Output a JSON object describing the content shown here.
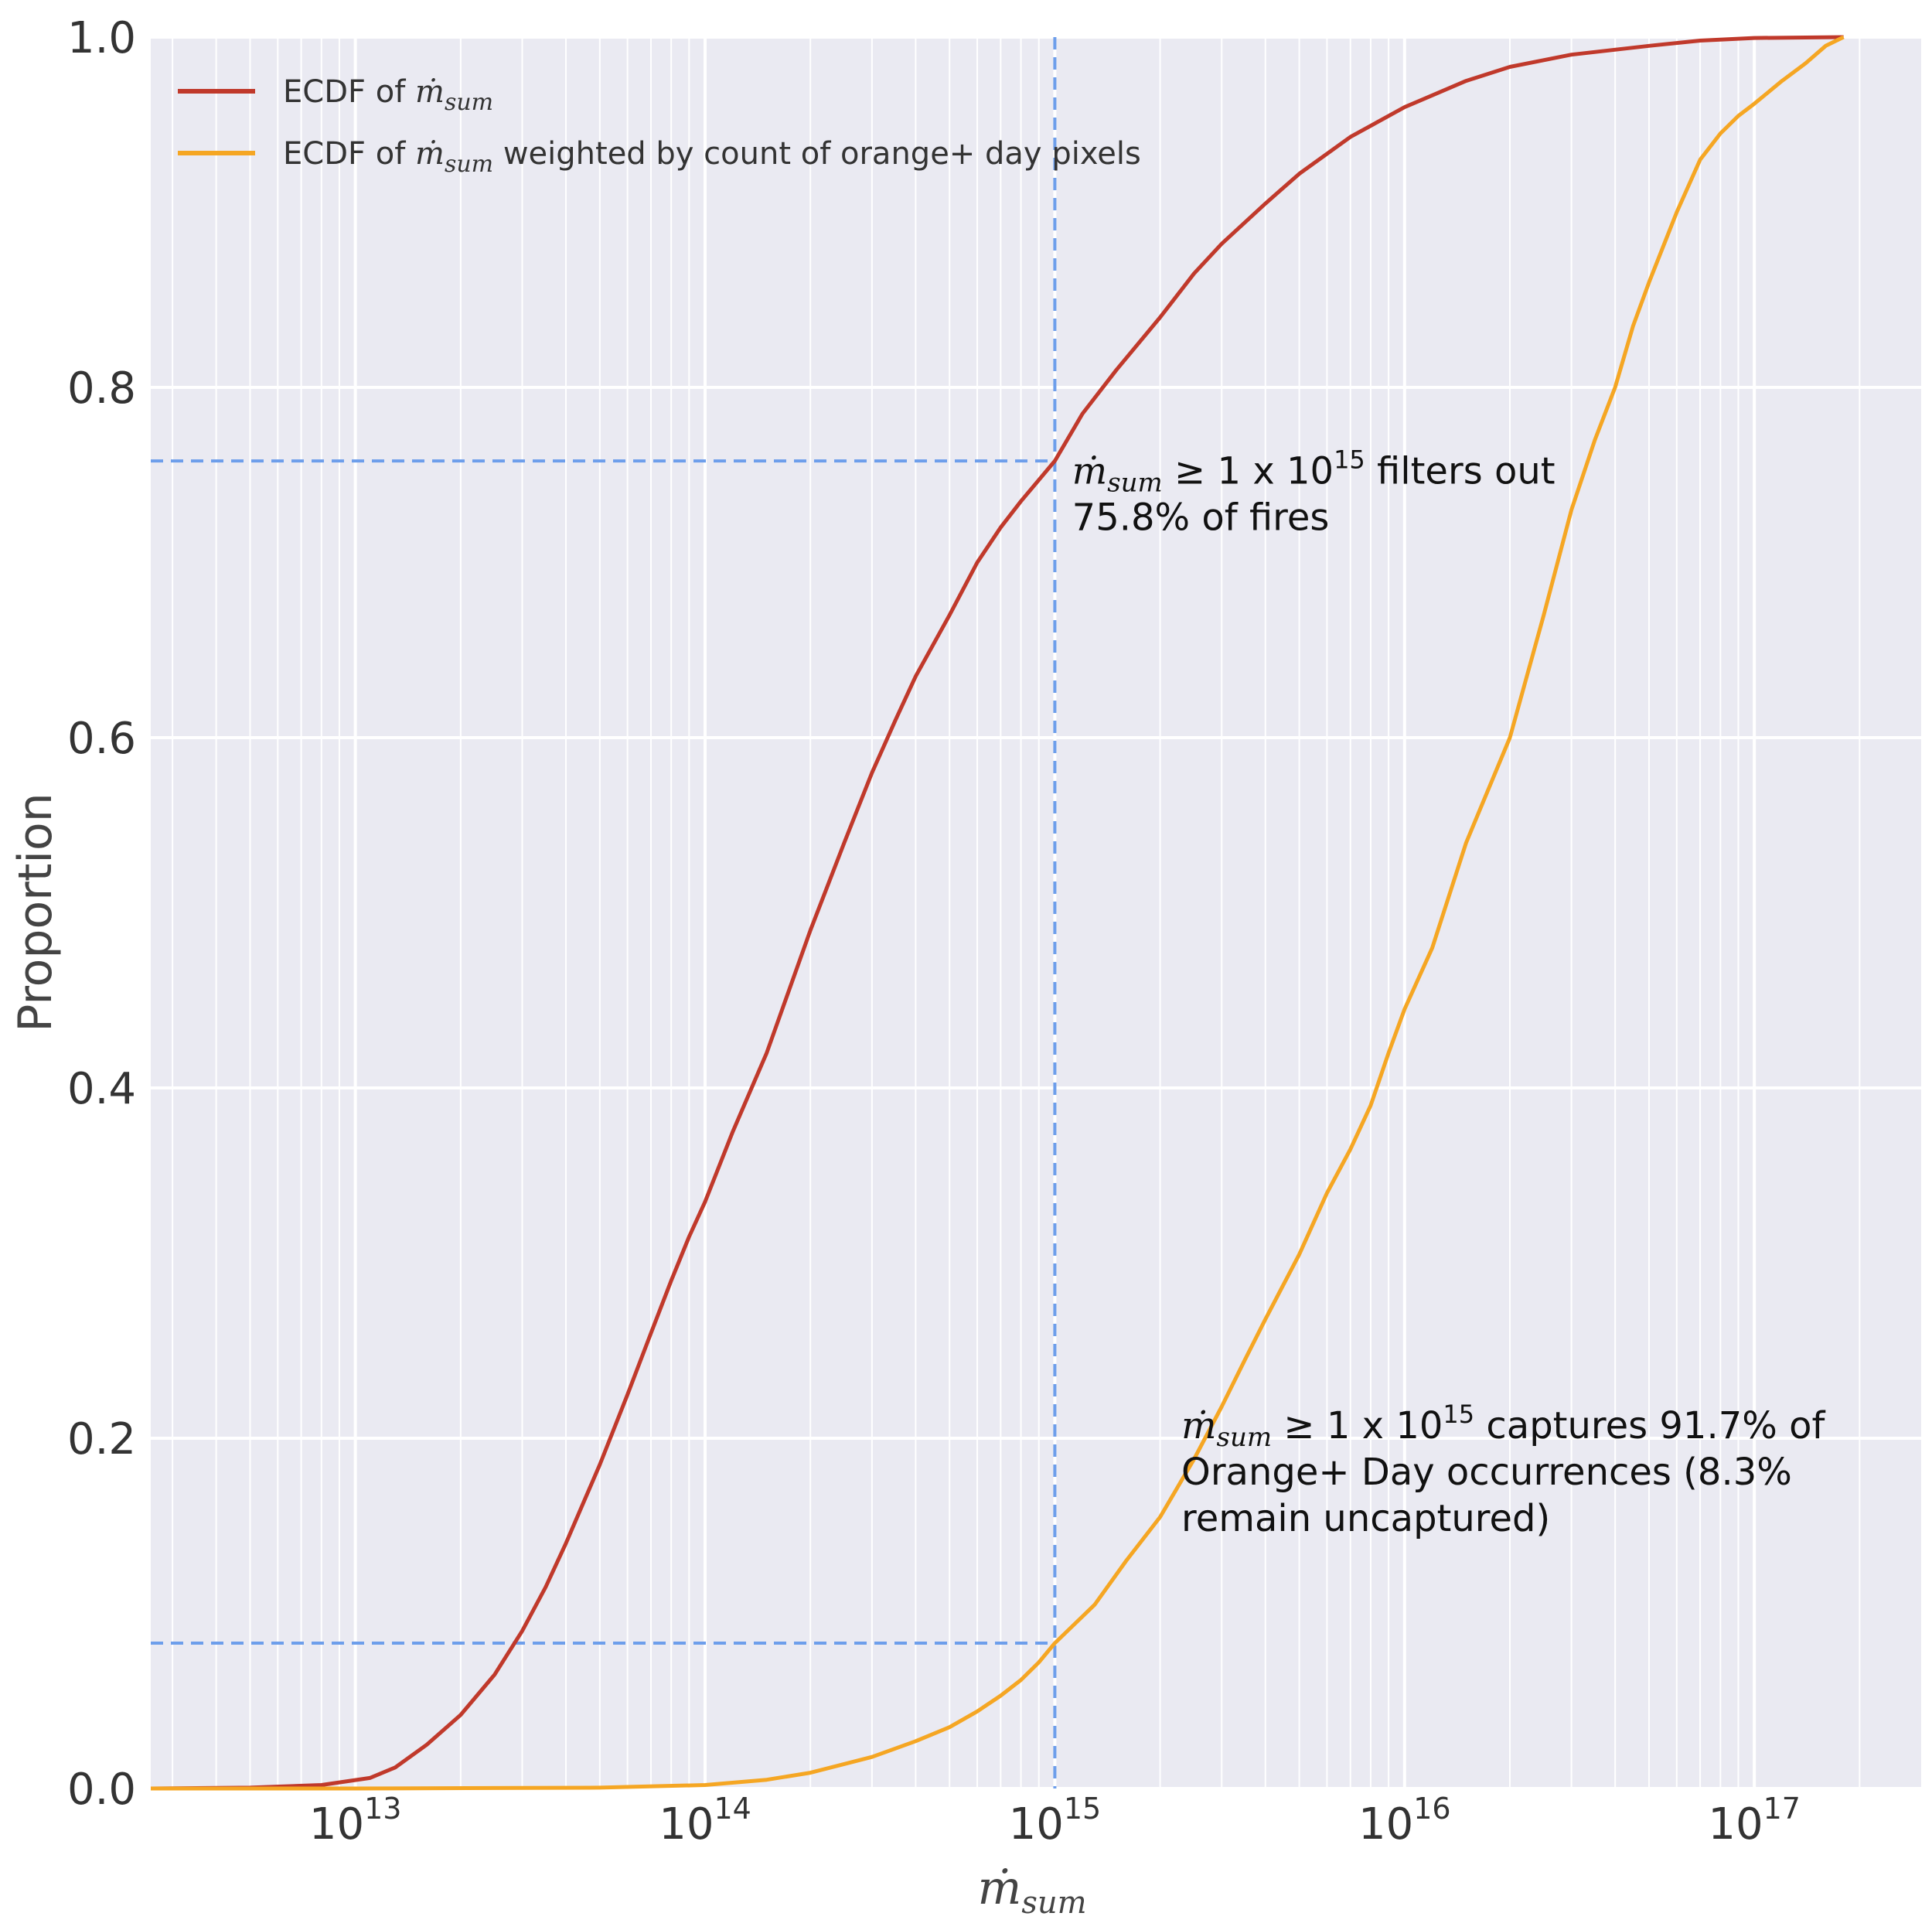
{
  "chart_data": {
    "type": "line",
    "xscale": "log",
    "xlim": [
      2600000000000.0,
      3e+17
    ],
    "ylim": [
      0,
      1
    ],
    "grid": true,
    "legend_placement": "top-left",
    "xlabel_main": "ṁ",
    "xlabel_sub": "sum",
    "ylabel": "Proportion",
    "xticks": [
      {
        "value": 10000000000000.0,
        "base": "10",
        "exp": "13"
      },
      {
        "value": 100000000000000.0,
        "base": "10",
        "exp": "14"
      },
      {
        "value": 1000000000000000.0,
        "base": "10",
        "exp": "15"
      },
      {
        "value": 1e+16,
        "base": "10",
        "exp": "16"
      },
      {
        "value": 1e+17,
        "base": "10",
        "exp": "17"
      }
    ],
    "yticks": [
      {
        "value": 0.0,
        "label": "0.0"
      },
      {
        "value": 0.2,
        "label": "0.2"
      },
      {
        "value": 0.4,
        "label": "0.4"
      },
      {
        "value": 0.6,
        "label": "0.6"
      },
      {
        "value": 0.8,
        "label": "0.8"
      },
      {
        "value": 1.0,
        "label": "1.0"
      }
    ],
    "legend": [
      {
        "prefix": "ECDF of ",
        "var_main": "ṁ",
        "var_sub": "sum",
        "suffix": ""
      },
      {
        "prefix": "ECDF of ",
        "var_main": "ṁ",
        "var_sub": "sum",
        "suffix": " weighted by count of orange+ day pixels"
      }
    ],
    "series": [
      {
        "color": "#c0392b",
        "points": [
          [
            2600000000000.0,
            0.0
          ],
          [
            5000000000000.0,
            0.0005
          ],
          [
            8000000000000.0,
            0.002
          ],
          [
            11000000000000.0,
            0.006
          ],
          [
            13000000000000.0,
            0.012
          ],
          [
            16000000000000.0,
            0.025
          ],
          [
            20000000000000.0,
            0.042
          ],
          [
            25000000000000.0,
            0.065
          ],
          [
            30000000000000.0,
            0.09
          ],
          [
            35000000000000.0,
            0.115
          ],
          [
            40000000000000.0,
            0.14
          ],
          [
            50000000000000.0,
            0.185
          ],
          [
            60000000000000.0,
            0.225
          ],
          [
            70000000000000.0,
            0.26
          ],
          [
            80000000000000.0,
            0.29
          ],
          [
            90000000000000.0,
            0.315
          ],
          [
            100000000000000.0,
            0.335
          ],
          [
            120000000000000.0,
            0.375
          ],
          [
            150000000000000.0,
            0.42
          ],
          [
            200000000000000.0,
            0.49
          ],
          [
            250000000000000.0,
            0.54
          ],
          [
            300000000000000.0,
            0.58
          ],
          [
            350000000000000.0,
            0.61
          ],
          [
            400000000000000.0,
            0.635
          ],
          [
            500000000000000.0,
            0.67
          ],
          [
            600000000000000.0,
            0.7
          ],
          [
            700000000000000.0,
            0.72
          ],
          [
            800000000000000.0,
            0.735
          ],
          [
            1000000000000000.0,
            0.758
          ],
          [
            1200000000000000.0,
            0.785
          ],
          [
            1500000000000000.0,
            0.81
          ],
          [
            2000000000000000.0,
            0.84
          ],
          [
            2500000000000000.0,
            0.865
          ],
          [
            3000000000000000.0,
            0.882
          ],
          [
            4000000000000000.0,
            0.905
          ],
          [
            5000000000000000.0,
            0.922
          ],
          [
            7000000000000000.0,
            0.943
          ],
          [
            1e+16,
            0.96
          ],
          [
            1.5e+16,
            0.975
          ],
          [
            2e+16,
            0.983
          ],
          [
            3e+16,
            0.99
          ],
          [
            5e+16,
            0.995
          ],
          [
            7e+16,
            0.998
          ],
          [
            1e+17,
            0.9995
          ],
          [
            1.8e+17,
            1.0
          ]
        ]
      },
      {
        "color": "#f5a623",
        "points": [
          [
            2600000000000.0,
            0.0
          ],
          [
            10000000000000.0,
            0.0
          ],
          [
            50000000000000.0,
            0.0005
          ],
          [
            100000000000000.0,
            0.002
          ],
          [
            150000000000000.0,
            0.005
          ],
          [
            200000000000000.0,
            0.009
          ],
          [
            300000000000000.0,
            0.018
          ],
          [
            400000000000000.0,
            0.027
          ],
          [
            500000000000000.0,
            0.035
          ],
          [
            600000000000000.0,
            0.044
          ],
          [
            700000000000000.0,
            0.053
          ],
          [
            800000000000000.0,
            0.062
          ],
          [
            900000000000000.0,
            0.072
          ],
          [
            1000000000000000.0,
            0.083
          ],
          [
            1300000000000000.0,
            0.105
          ],
          [
            1600000000000000.0,
            0.13
          ],
          [
            2000000000000000.0,
            0.155
          ],
          [
            2500000000000000.0,
            0.188
          ],
          [
            3000000000000000.0,
            0.218
          ],
          [
            3500000000000000.0,
            0.245
          ],
          [
            4000000000000000.0,
            0.268
          ],
          [
            5000000000000000.0,
            0.305
          ],
          [
            6000000000000000.0,
            0.34
          ],
          [
            7000000000000000.0,
            0.365
          ],
          [
            8000000000000000.0,
            0.39
          ],
          [
            9000000000000000.0,
            0.42
          ],
          [
            1e+16,
            0.445
          ],
          [
            1.2e+16,
            0.48
          ],
          [
            1.5e+16,
            0.54
          ],
          [
            2e+16,
            0.6
          ],
          [
            2.5e+16,
            0.67
          ],
          [
            3e+16,
            0.73
          ],
          [
            3.5e+16,
            0.77
          ],
          [
            4e+16,
            0.8
          ],
          [
            4.5e+16,
            0.835
          ],
          [
            5e+16,
            0.86
          ],
          [
            6e+16,
            0.9
          ],
          [
            7e+16,
            0.93
          ],
          [
            8e+16,
            0.945
          ],
          [
            9e+16,
            0.955
          ],
          [
            1e+17,
            0.962
          ],
          [
            1.2e+17,
            0.975
          ],
          [
            1.4e+17,
            0.985
          ],
          [
            1.6e+17,
            0.995
          ],
          [
            1.8e+17,
            1.0
          ]
        ]
      }
    ],
    "reference_lines": {
      "x": 1000000000000000.0,
      "y_values": [
        0.758,
        0.083
      ]
    },
    "annotations": [
      {
        "anchor_x": 1120000000000000.0,
        "anchor_y": 0.745,
        "var_main": "ṁ",
        "var_sub": "sum",
        "line1_after_var": " ≥ 1 x 10",
        "line1_exp": "15",
        "line1_tail": " filters out",
        "lines": [
          "75.8% of fires"
        ]
      },
      {
        "anchor_x": 2300000000000000.0,
        "anchor_y": 0.2,
        "var_main": "ṁ",
        "var_sub": "sum",
        "line1_after_var": " ≥ 1 x 10",
        "line1_exp": "15",
        "line1_tail": " captures 91.7% of",
        "lines": [
          "Orange+ Day occurrences (8.3%",
          "remain uncaptured)"
        ]
      }
    ]
  }
}
